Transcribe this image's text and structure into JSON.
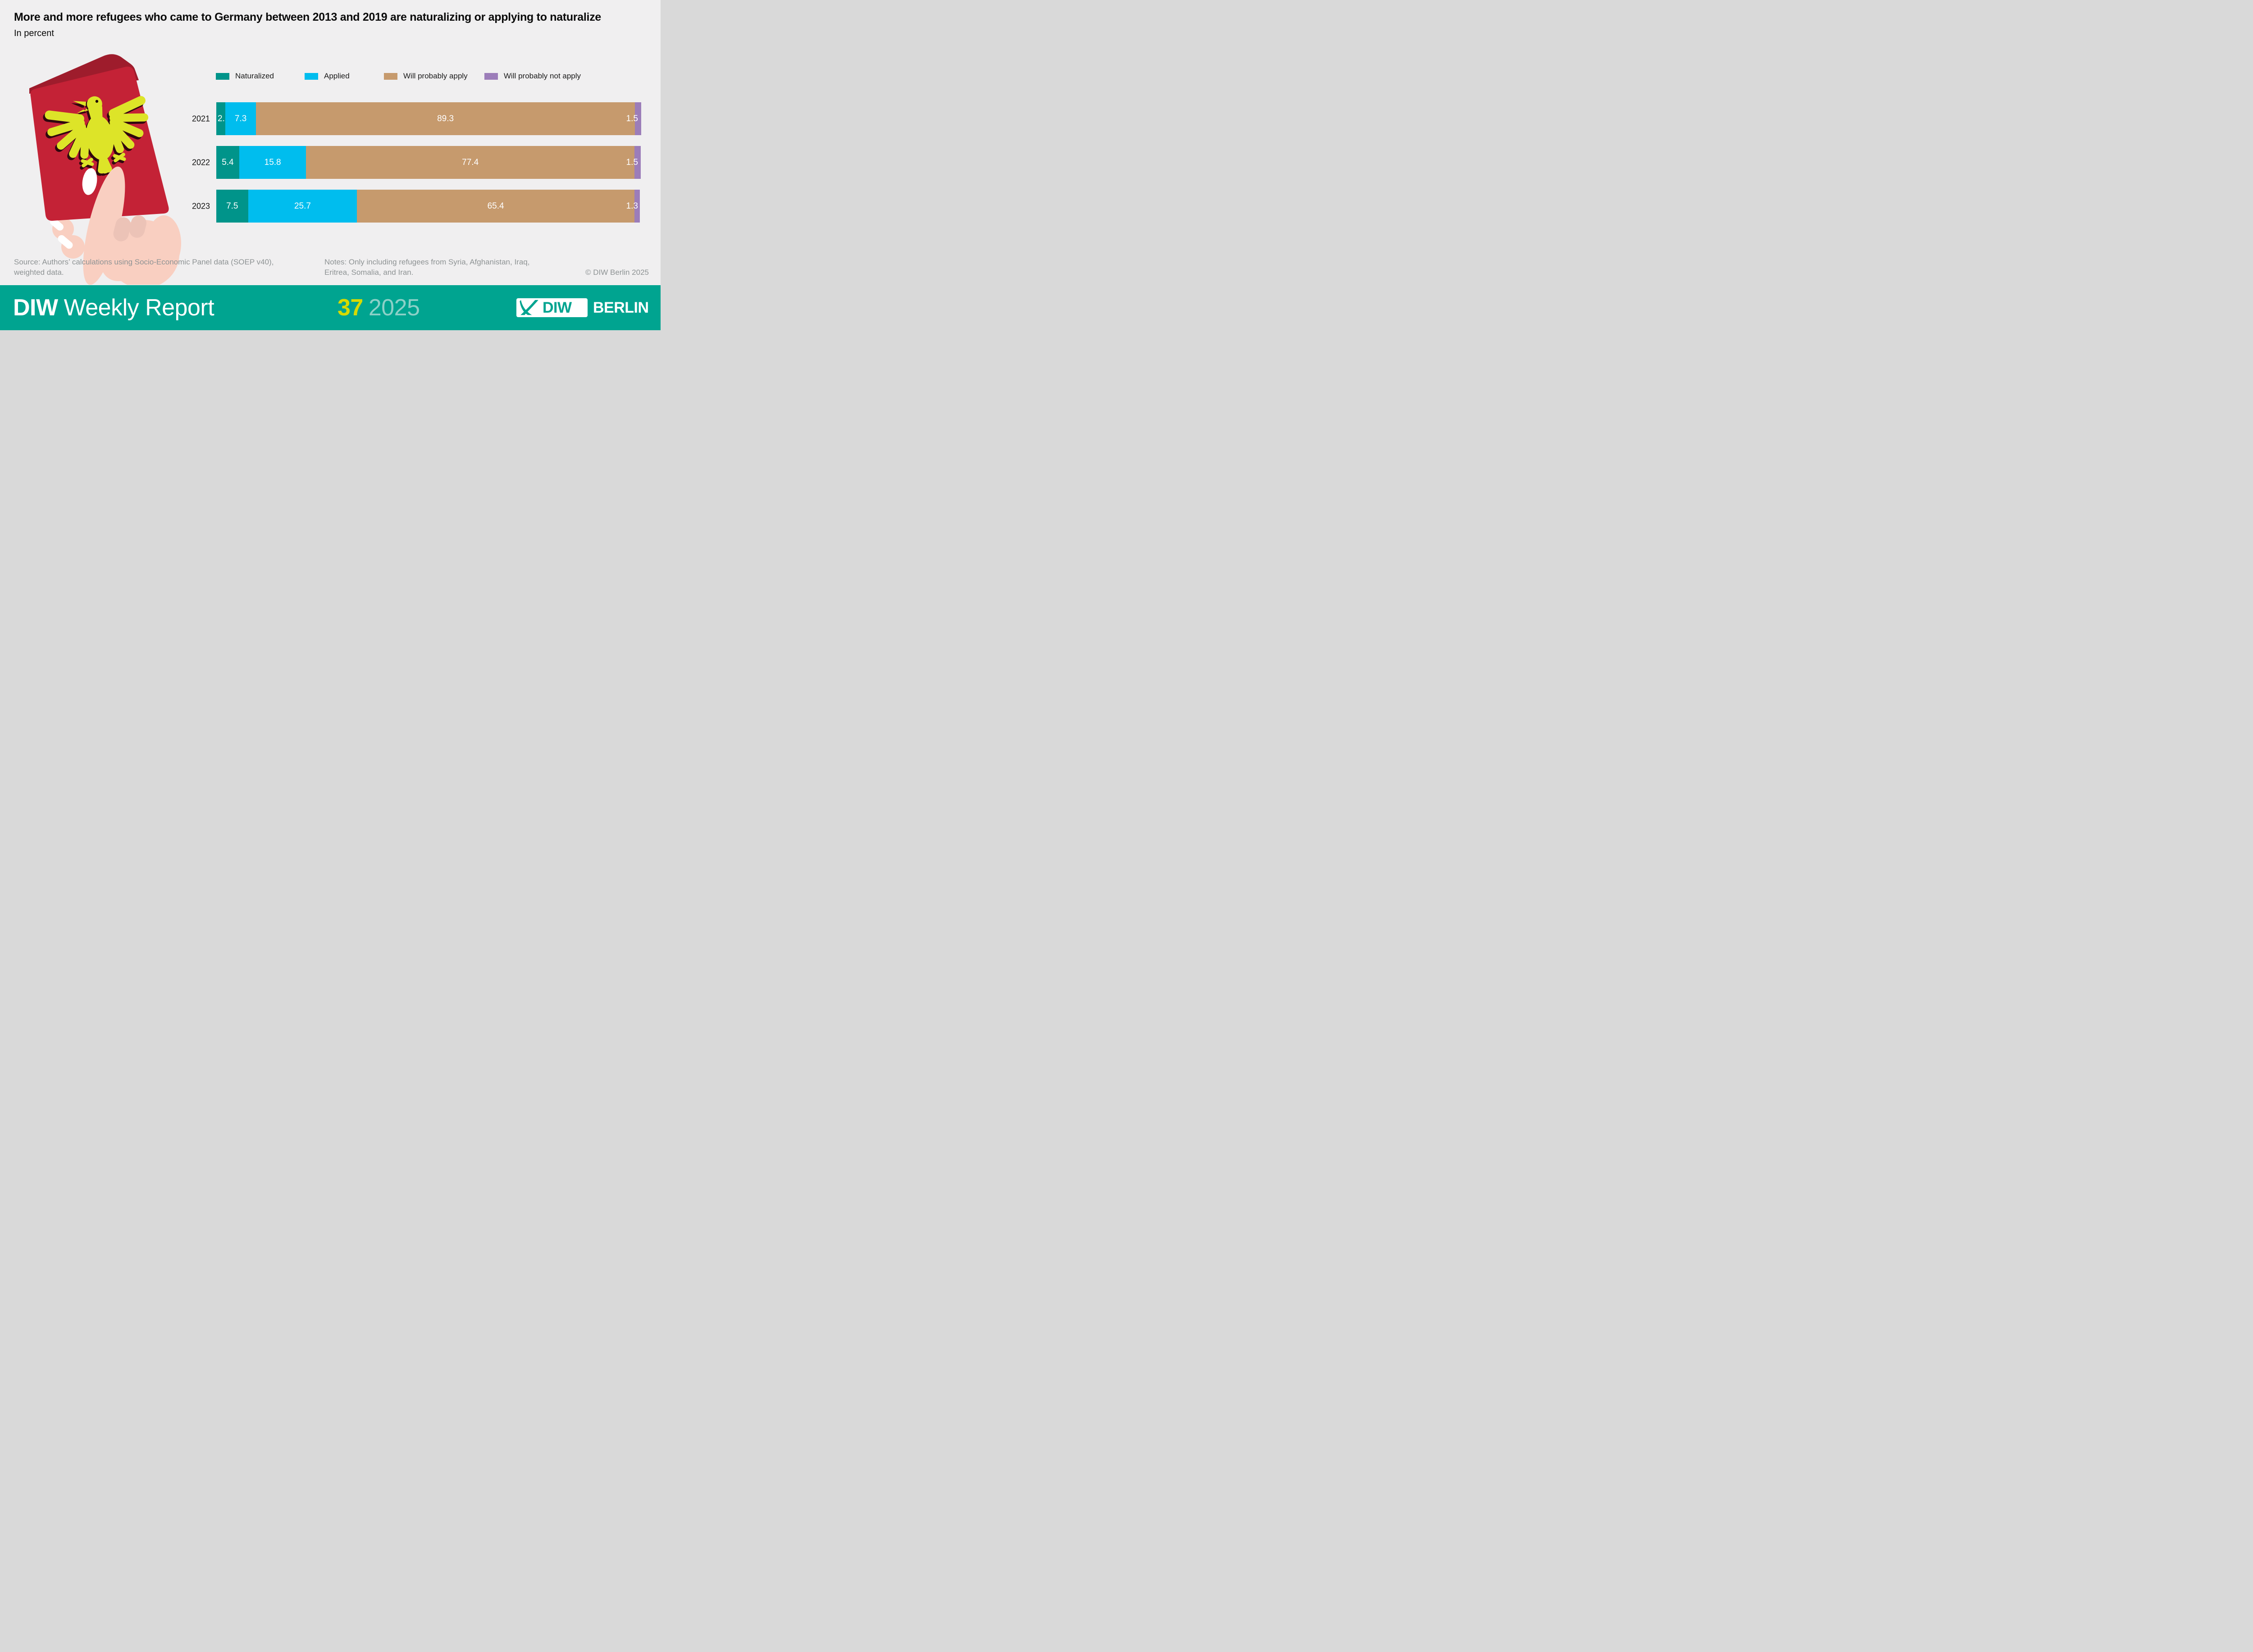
{
  "header": {
    "title": "More and more refugees who came to Germany between 2013 and 2019 are naturalizing or applying to naturalize",
    "subtitle": "In percent"
  },
  "chart_data": {
    "type": "bar",
    "orientation": "horizontal-stacked",
    "title": "More and more refugees who came to Germany between 2013 and 2019 are naturalizing or applying to naturalize",
    "subtitle": "In percent",
    "unit": "percent",
    "xlim": [
      0,
      100
    ],
    "grid": false,
    "legend_position": "top",
    "value_labels": true,
    "categories": [
      "2021",
      "2022",
      "2023"
    ],
    "series": [
      {
        "name": "Naturalized",
        "color": "#00948a",
        "values": [
          2.1,
          5.4,
          7.5
        ]
      },
      {
        "name": "Applied",
        "color": "#00bdee",
        "values": [
          7.3,
          15.8,
          25.7
        ]
      },
      {
        "name": "Will probably apply",
        "color": "#c69a6d",
        "values": [
          89.3,
          77.4,
          65.4
        ]
      },
      {
        "name": "Will probably not apply",
        "color": "#9c7db9",
        "values": [
          1.5,
          1.5,
          1.3
        ]
      }
    ]
  },
  "annotations": {
    "source_line1": "Source: Authors’ calculations using Socio-Economic Panel data (SOEP v40),",
    "source_line2": "weighted data.",
    "notes_line1": "Notes: Only including refugees from Syria, Afghanistan, Iraq,",
    "notes_line2": "Eritrea, Somalia, and Iran.",
    "copyright": "© DIW Berlin 2025"
  },
  "footer": {
    "brand_bold": "DIW",
    "brand_rest": "Weekly Report",
    "issue_number": "37",
    "issue_year": "2025",
    "logo": {
      "diw": "DIW",
      "berlin": "BERLIN"
    }
  },
  "illustration": {
    "name": "hand-holding-german-passport",
    "description": "Illustrated hand holding a red German passport with the federal eagle"
  },
  "colors": {
    "background": "#f0eff0",
    "title_text": "#0a0a0a",
    "muted_text": "#8e9394",
    "bar_naturalized": "#00948a",
    "bar_applied": "#00bdee",
    "bar_will_apply": "#c69a6d",
    "bar_will_not_apply": "#9c7db9",
    "footer_band": "#00a490",
    "issue_number": "#d6da00",
    "issue_year": "#8cd0c7",
    "logo_teal": "#00a490",
    "passport_red": "#c42236",
    "passport_dark_red": "#9e1c2c",
    "eagle_yellow": "#dde428",
    "eagle_shadow": "#30070e",
    "hand_skin": "#f9cfc1",
    "hand_shade": "#ecc3b7",
    "nail_white": "#ffffff"
  }
}
